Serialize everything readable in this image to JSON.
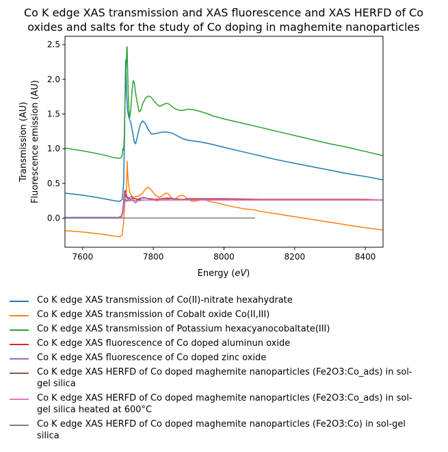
{
  "chart_data": {
    "type": "line",
    "title": "Co K edge XAS transmission and XAS fluorescence and XAS HERFD of Co oxides and salts for the study of Co doping in maghemite nanoparticles",
    "title_lines": [
      "Co K edge XAS transmission and XAS fluorescence and XAS HERFD of Co",
      "oxides and salts for the study of Co doping in maghemite nanoparticles"
    ],
    "xlabel": "Energy",
    "xlabel_unit": "eV",
    "ylabel_lines": [
      "Transmission (AU)",
      "Fluorescence emission (AU)"
    ],
    "xlim": [
      7550,
      8450
    ],
    "ylim": [
      -0.42,
      2.62
    ],
    "x_ticks": [
      7600,
      7800,
      8000,
      8200,
      8400
    ],
    "x_tick_labels": [
      "7600",
      "7800",
      "8000",
      "8200",
      "8400"
    ],
    "y_ticks": [
      0.0,
      0.5,
      1.0,
      1.5,
      2.0,
      2.5
    ],
    "y_tick_labels": [
      "0.0",
      "0.5",
      "1.0",
      "1.5",
      "2.0",
      "2.5"
    ],
    "grid": false,
    "legend_position": "below",
    "series": [
      {
        "name": "Co K edge XAS transmission of Co(II)-nitrate hexahydrate",
        "color": "#1f77b4",
        "points": [
          [
            7550,
            0.36
          ],
          [
            7600,
            0.33
          ],
          [
            7650,
            0.29
          ],
          [
            7690,
            0.25
          ],
          [
            7705,
            0.24
          ],
          [
            7712,
            0.27
          ],
          [
            7716,
            0.5
          ],
          [
            7719,
            1.3
          ],
          [
            7721,
            2.05
          ],
          [
            7722,
            2.28
          ],
          [
            7724,
            1.85
          ],
          [
            7727,
            1.55
          ],
          [
            7731,
            1.45
          ],
          [
            7736,
            1.38
          ],
          [
            7741,
            1.25
          ],
          [
            7746,
            1.1
          ],
          [
            7750,
            1.07
          ],
          [
            7756,
            1.2
          ],
          [
            7763,
            1.35
          ],
          [
            7770,
            1.4
          ],
          [
            7778,
            1.36
          ],
          [
            7786,
            1.27
          ],
          [
            7795,
            1.21
          ],
          [
            7810,
            1.22
          ],
          [
            7825,
            1.24
          ],
          [
            7840,
            1.24
          ],
          [
            7855,
            1.22
          ],
          [
            7870,
            1.18
          ],
          [
            7885,
            1.14
          ],
          [
            7900,
            1.12
          ],
          [
            7930,
            1.1
          ],
          [
            7960,
            1.07
          ],
          [
            8000,
            1.02
          ],
          [
            8050,
            0.96
          ],
          [
            8100,
            0.9
          ],
          [
            8150,
            0.84
          ],
          [
            8200,
            0.79
          ],
          [
            8250,
            0.74
          ],
          [
            8300,
            0.69
          ],
          [
            8350,
            0.64
          ],
          [
            8400,
            0.6
          ],
          [
            8450,
            0.55
          ]
        ]
      },
      {
        "name": "Co K edge XAS transmission of Cobalt oxide Co(II,III)",
        "color": "#ff7f0e",
        "points": [
          [
            7550,
            -0.18
          ],
          [
            7600,
            -0.2
          ],
          [
            7650,
            -0.23
          ],
          [
            7690,
            -0.26
          ],
          [
            7705,
            -0.27
          ],
          [
            7712,
            -0.24
          ],
          [
            7716,
            -0.05
          ],
          [
            7719,
            0.2
          ],
          [
            7722,
            0.32
          ],
          [
            7724,
            0.4
          ],
          [
            7726,
            0.82
          ],
          [
            7727,
            0.7
          ],
          [
            7729,
            0.52
          ],
          [
            7733,
            0.38
          ],
          [
            7738,
            0.32
          ],
          [
            7744,
            0.3
          ],
          [
            7752,
            0.31
          ],
          [
            7760,
            0.32
          ],
          [
            7768,
            0.35
          ],
          [
            7775,
            0.4
          ],
          [
            7782,
            0.44
          ],
          [
            7790,
            0.43
          ],
          [
            7798,
            0.38
          ],
          [
            7806,
            0.33
          ],
          [
            7815,
            0.3
          ],
          [
            7825,
            0.32
          ],
          [
            7835,
            0.36
          ],
          [
            7842,
            0.35
          ],
          [
            7850,
            0.3
          ],
          [
            7858,
            0.27
          ],
          [
            7866,
            0.29
          ],
          [
            7874,
            0.32
          ],
          [
            7882,
            0.33
          ],
          [
            7890,
            0.31
          ],
          [
            7898,
            0.27
          ],
          [
            7910,
            0.24
          ],
          [
            7925,
            0.25
          ],
          [
            7940,
            0.27
          ],
          [
            7960,
            0.24
          ],
          [
            7980,
            0.22
          ],
          [
            8000,
            0.19
          ],
          [
            8030,
            0.16
          ],
          [
            8060,
            0.13
          ],
          [
            8085,
            0.12
          ],
          [
            8100,
            0.1
          ],
          [
            8150,
            0.06
          ],
          [
            8200,
            0.02
          ],
          [
            8250,
            -0.02
          ],
          [
            8300,
            -0.06
          ],
          [
            8350,
            -0.1
          ],
          [
            8400,
            -0.14
          ],
          [
            8450,
            -0.17
          ]
        ]
      },
      {
        "name": "Co K edge XAS transmission of Potassium hexacyanocobaltate(III)",
        "color": "#2ca02c",
        "points": [
          [
            7550,
            1.01
          ],
          [
            7600,
            0.97
          ],
          [
            7650,
            0.92
          ],
          [
            7690,
            0.87
          ],
          [
            7705,
            0.86
          ],
          [
            7711,
            0.88
          ],
          [
            7714,
            1.0
          ],
          [
            7716,
            0.98
          ],
          [
            7718,
            1.2
          ],
          [
            7720,
            1.7
          ],
          [
            7722,
            2.05
          ],
          [
            7724,
            2.3
          ],
          [
            7725,
            2.45
          ],
          [
            7726,
            2.47
          ],
          [
            7727,
            2.2
          ],
          [
            7729,
            1.8
          ],
          [
            7731,
            1.55
          ],
          [
            7733,
            1.45
          ],
          [
            7736,
            1.55
          ],
          [
            7740,
            1.85
          ],
          [
            7743,
            1.98
          ],
          [
            7746,
            1.95
          ],
          [
            7750,
            1.8
          ],
          [
            7755,
            1.65
          ],
          [
            7760,
            1.53
          ],
          [
            7764,
            1.55
          ],
          [
            7770,
            1.65
          ],
          [
            7778,
            1.73
          ],
          [
            7786,
            1.76
          ],
          [
            7794,
            1.74
          ],
          [
            7802,
            1.69
          ],
          [
            7810,
            1.64
          ],
          [
            7818,
            1.61
          ],
          [
            7826,
            1.63
          ],
          [
            7834,
            1.65
          ],
          [
            7842,
            1.65
          ],
          [
            7850,
            1.62
          ],
          [
            7860,
            1.58
          ],
          [
            7870,
            1.56
          ],
          [
            7880,
            1.55
          ],
          [
            7890,
            1.56
          ],
          [
            7900,
            1.57
          ],
          [
            7915,
            1.56
          ],
          [
            7930,
            1.54
          ],
          [
            7950,
            1.51
          ],
          [
            7970,
            1.47
          ],
          [
            8000,
            1.43
          ],
          [
            8050,
            1.37
          ],
          [
            8100,
            1.31
          ],
          [
            8150,
            1.25
          ],
          [
            8200,
            1.19
          ],
          [
            8250,
            1.13
          ],
          [
            8300,
            1.07
          ],
          [
            8350,
            1.02
          ],
          [
            8400,
            0.96
          ],
          [
            8450,
            0.9
          ]
        ]
      },
      {
        "name": "Co K edge XAS fluorescence of Co doped aluminun oxide",
        "color": "#d62728",
        "points": [
          [
            7705,
            0.02
          ],
          [
            7710,
            0.03
          ],
          [
            7714,
            0.12
          ],
          [
            7717,
            0.3
          ],
          [
            7719,
            0.38
          ],
          [
            7721,
            0.4
          ],
          [
            7723,
            0.35
          ],
          [
            7726,
            0.3
          ],
          [
            7730,
            0.29
          ],
          [
            7736,
            0.27
          ],
          [
            7742,
            0.29
          ],
          [
            7748,
            0.28
          ],
          [
            7756,
            0.27
          ],
          [
            7765,
            0.29
          ],
          [
            7775,
            0.29
          ],
          [
            7790,
            0.28
          ],
          [
            7805,
            0.27
          ],
          [
            7820,
            0.28
          ],
          [
            7840,
            0.29
          ],
          [
            7860,
            0.28
          ],
          [
            7880,
            0.27
          ],
          [
            7900,
            0.28
          ],
          [
            7950,
            0.28
          ],
          [
            8000,
            0.28
          ],
          [
            8100,
            0.27
          ],
          [
            8200,
            0.27
          ],
          [
            8300,
            0.27
          ],
          [
            8400,
            0.27
          ],
          [
            8450,
            0.26
          ]
        ]
      },
      {
        "name": "Co K edge XAS fluorescence of Co doped zinc oxide",
        "color": "#9467bd",
        "points": [
          [
            7550,
            0.01
          ],
          [
            7600,
            0.01
          ],
          [
            7650,
            0.01
          ],
          [
            7700,
            0.01
          ],
          [
            7708,
            0.02
          ],
          [
            7712,
            0.05
          ],
          [
            7715,
            0.2
          ],
          [
            7718,
            0.3
          ],
          [
            7721,
            0.34
          ],
          [
            7724,
            0.3
          ],
          [
            7728,
            0.27
          ],
          [
            7733,
            0.3
          ],
          [
            7738,
            0.31
          ],
          [
            7742,
            0.27
          ],
          [
            7746,
            0.23
          ],
          [
            7750,
            0.22
          ],
          [
            7756,
            0.25
          ],
          [
            7764,
            0.28
          ],
          [
            7772,
            0.3
          ],
          [
            7780,
            0.29
          ],
          [
            7790,
            0.27
          ],
          [
            7800,
            0.26
          ],
          [
            7810,
            0.25
          ],
          [
            7820,
            0.26
          ],
          [
            7835,
            0.27
          ],
          [
            7850,
            0.28
          ],
          [
            7870,
            0.27
          ],
          [
            7890,
            0.27
          ],
          [
            7920,
            0.27
          ],
          [
            7950,
            0.27
          ],
          [
            8000,
            0.27
          ],
          [
            8100,
            0.26
          ],
          [
            8200,
            0.26
          ],
          [
            8300,
            0.26
          ],
          [
            8400,
            0.26
          ],
          [
            8450,
            0.26
          ]
        ]
      },
      {
        "name": "Co K edge XAS HERFD of Co doped maghemite nanoparticles (Fe2O3:Co_ads) in sol-gel silica",
        "color": "#8c564b",
        "points": [
          [
            7550,
            0.0
          ],
          [
            7650,
            0.0
          ],
          [
            7700,
            0.0
          ],
          [
            7710,
            0.01
          ],
          [
            7714,
            0.08
          ],
          [
            7718,
            0.22
          ],
          [
            7721,
            0.27
          ],
          [
            7725,
            0.25
          ],
          [
            7730,
            0.26
          ],
          [
            7740,
            0.25
          ],
          [
            7760,
            0.26
          ],
          [
            7780,
            0.26
          ],
          [
            7800,
            0.26
          ],
          [
            7850,
            0.26
          ],
          [
            7900,
            0.26
          ],
          [
            8000,
            0.26
          ],
          [
            8100,
            0.26
          ],
          [
            8200,
            0.26
          ],
          [
            8300,
            0.26
          ],
          [
            8450,
            0.26
          ]
        ]
      },
      {
        "name": "Co K edge XAS HERFD of Co doped maghemite nanoparticles (Fe2O3:Co_ads) in sol-gel silica heated at 600°C",
        "color": "#e377c2",
        "points": [
          [
            7550,
            0.0
          ],
          [
            7650,
            0.0
          ],
          [
            7700,
            0.0
          ],
          [
            7710,
            0.01
          ],
          [
            7714,
            0.07
          ],
          [
            7718,
            0.2
          ],
          [
            7721,
            0.25
          ],
          [
            7725,
            0.24
          ],
          [
            7730,
            0.25
          ],
          [
            7740,
            0.25
          ],
          [
            7760,
            0.25
          ],
          [
            7780,
            0.26
          ],
          [
            7800,
            0.26
          ],
          [
            7850,
            0.26
          ],
          [
            7900,
            0.26
          ],
          [
            8000,
            0.26
          ],
          [
            8100,
            0.26
          ],
          [
            8200,
            0.26
          ],
          [
            8300,
            0.26
          ],
          [
            8450,
            0.26
          ]
        ]
      },
      {
        "name": "Co K edge XAS HERFD of Co doped maghemite nanoparticles (Fe2O3:Co) in sol-gel silica",
        "color": "#7f7f7f",
        "points": [
          [
            7550,
            0.0
          ],
          [
            7600,
            0.0
          ],
          [
            7700,
            0.0
          ],
          [
            7800,
            0.0
          ],
          [
            7900,
            0.0
          ],
          [
            8000,
            0.0
          ],
          [
            8088,
            0.0
          ]
        ]
      }
    ],
    "legend_lines": [
      [
        "Co K edge XAS transmission of Co(II)-nitrate hexahydrate"
      ],
      [
        "Co K edge XAS transmission of Cobalt oxide Co(II,III)"
      ],
      [
        "Co K edge XAS transmission of Potassium hexacyanocobaltate(III)"
      ],
      [
        "Co K edge XAS fluorescence of Co doped aluminun oxide"
      ],
      [
        "Co K edge XAS fluorescence of Co doped zinc oxide"
      ],
      [
        "Co K edge XAS HERFD of Co doped maghemite nanoparticles (Fe2O3:Co_ads) in sol-",
        "gel silica"
      ],
      [
        "Co K edge XAS HERFD of Co doped maghemite nanoparticles (Fe2O3:Co_ads) in sol-",
        "gel silica heated at 600°C"
      ],
      [
        "Co K edge XAS HERFD of Co doped maghemite nanoparticles (Fe2O3:Co) in sol-gel",
        "silica"
      ]
    ]
  }
}
